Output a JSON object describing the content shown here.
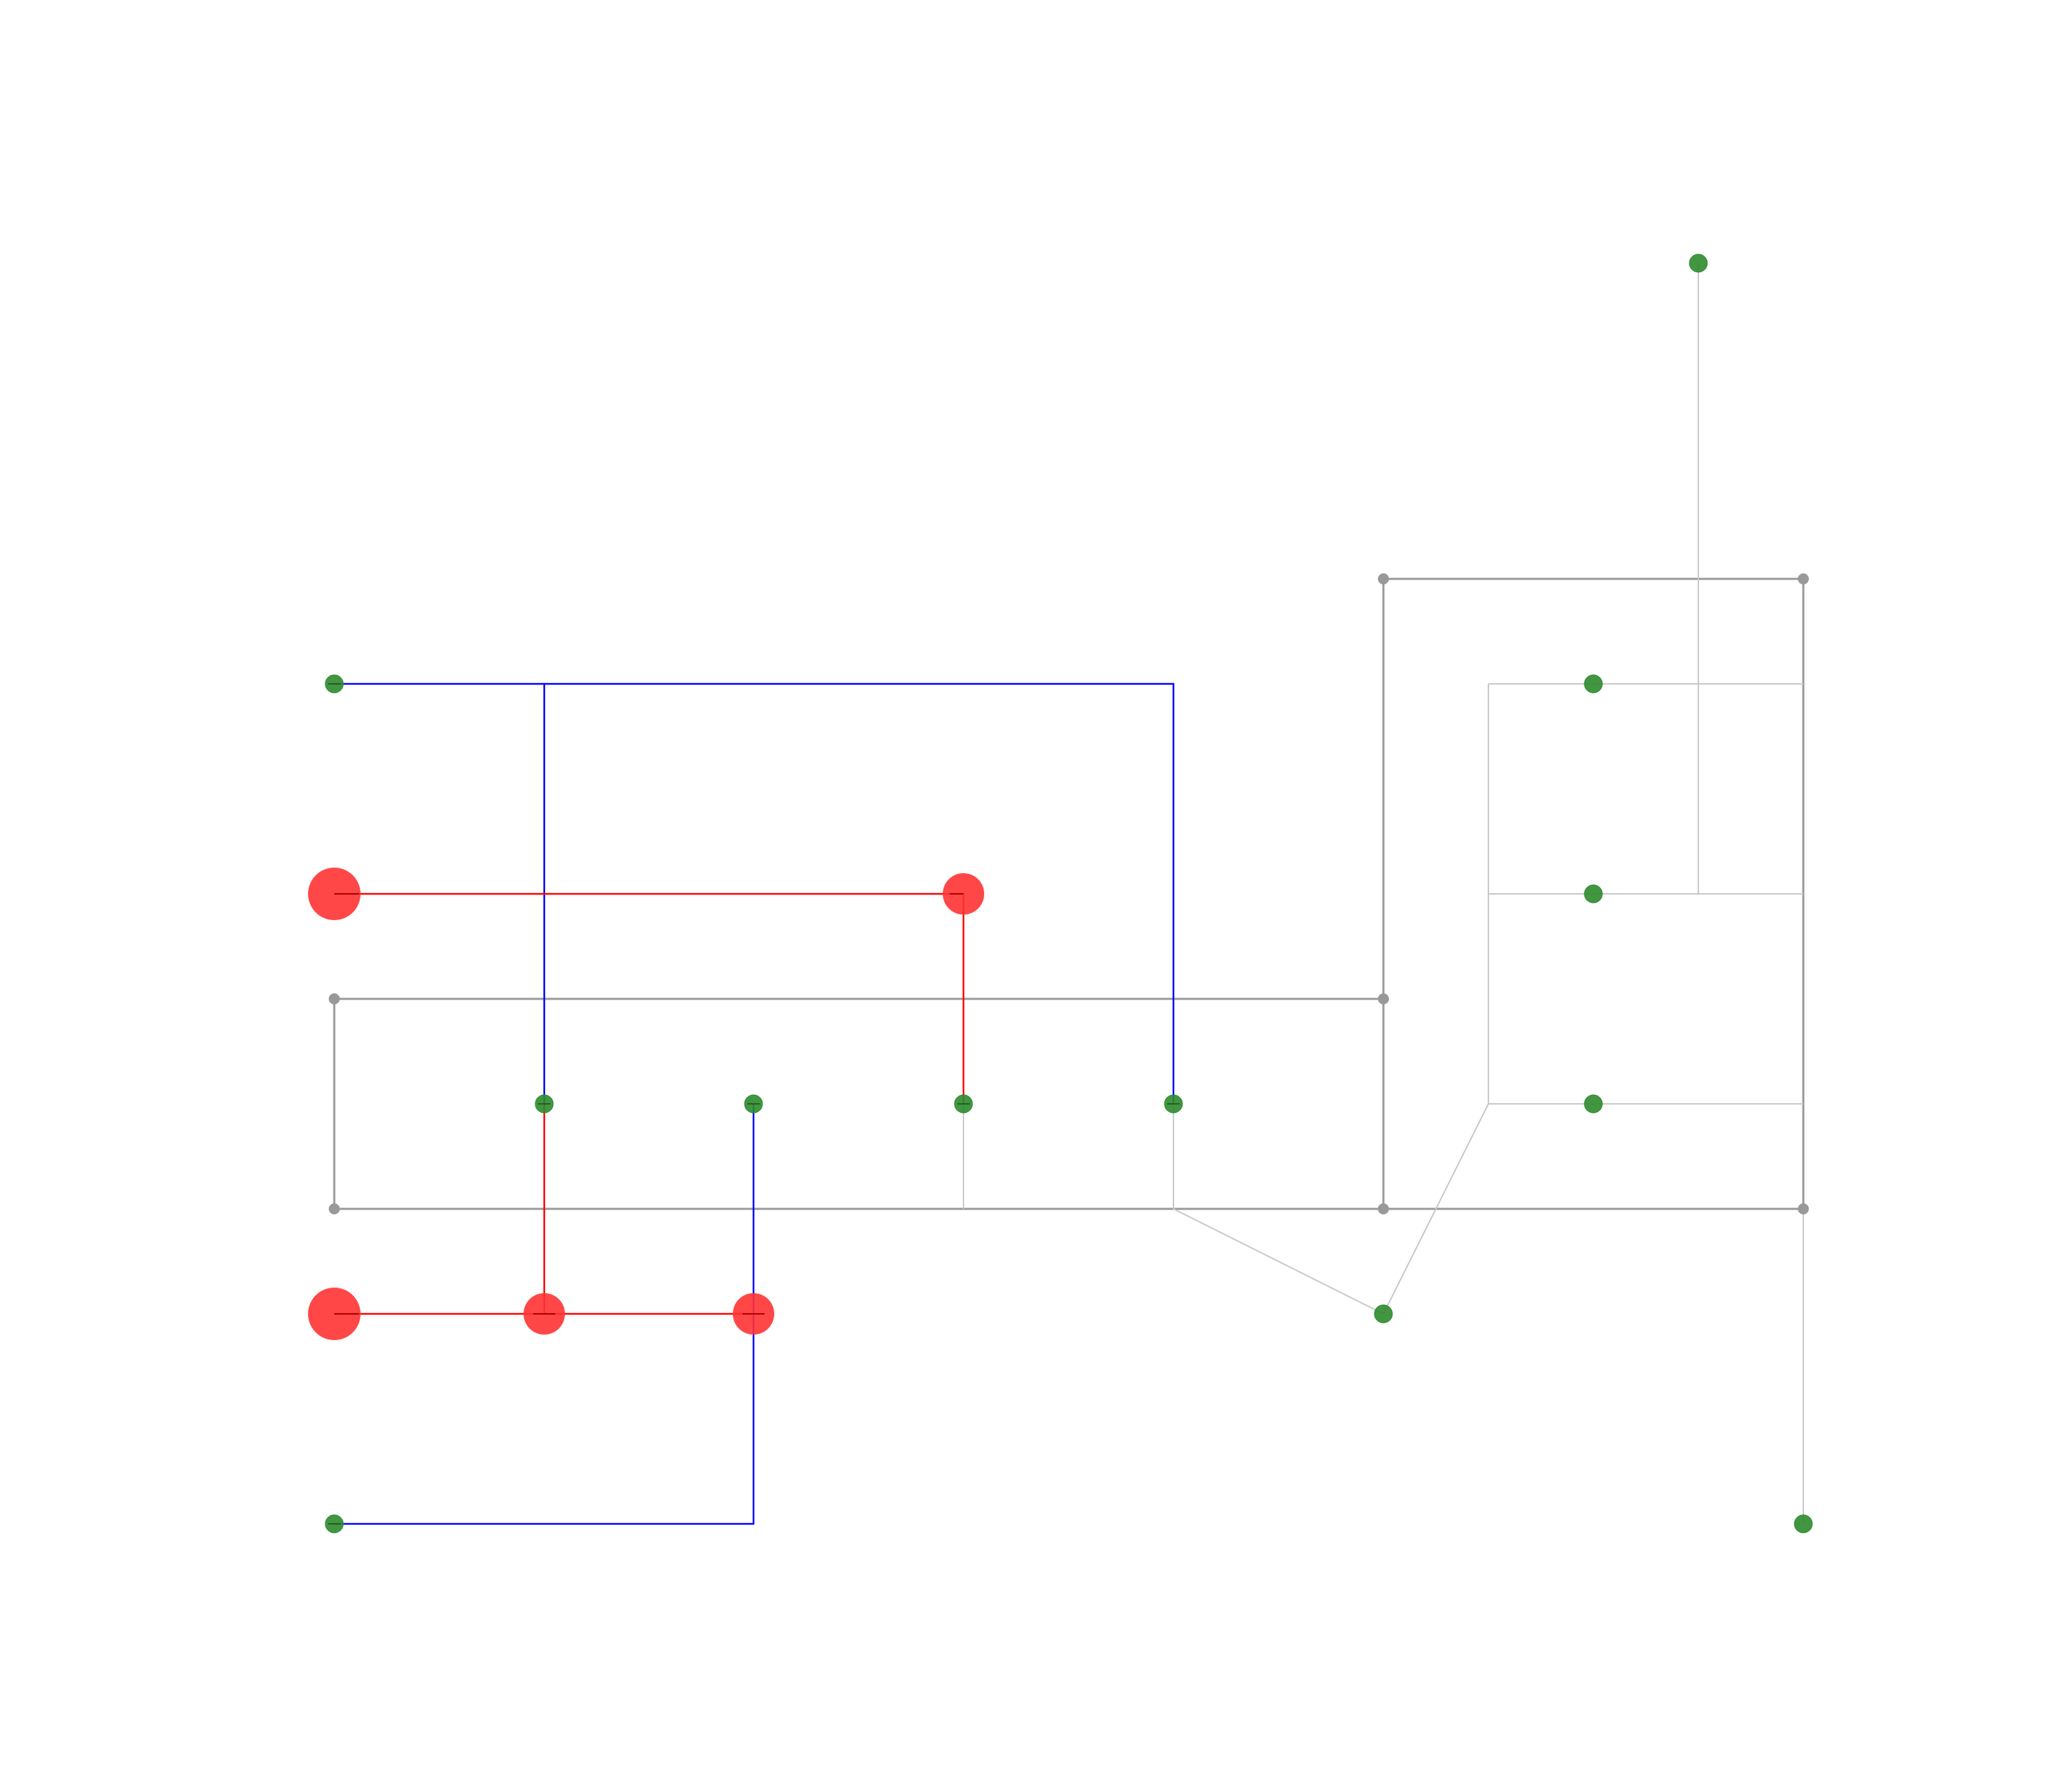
{
  "diagram": {
    "colors": {
      "background": "#ffffff",
      "grid_line_dark": "#999999",
      "grid_line_light": "#c8c8c8",
      "red_route": "#ff0000",
      "blue_route": "#0000ff",
      "terminal_fill": "#2e8b2e",
      "junction_fill": "#999999",
      "red_node_fill": "#ff3333"
    },
    "legend": []
  }
}
